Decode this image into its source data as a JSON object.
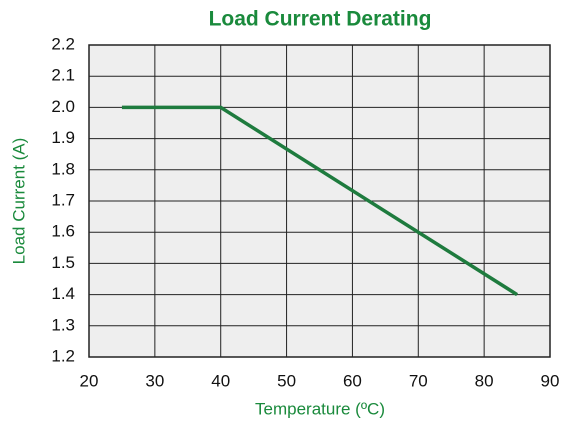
{
  "chart_data": {
    "type": "line",
    "title": "Load Current Derating",
    "x_label": "Temperature (ºC)",
    "y_label": "Load Current (A)",
    "x": [
      25,
      40,
      85
    ],
    "series": [
      {
        "name": "Load Current",
        "color": "#1e7b3e",
        "values": [
          2.0,
          2.0,
          1.4
        ]
      }
    ],
    "xlim": [
      20,
      90
    ],
    "xticks": [
      20,
      30,
      40,
      50,
      60,
      70,
      80,
      90
    ],
    "ylim": [
      1.2,
      2.2
    ],
    "yticks": [
      1.2,
      1.3,
      1.4,
      1.5,
      1.6,
      1.7,
      1.8,
      1.9,
      {
        "value": 2,
        "label": "2.0"
      },
      2.1,
      2.2
    ],
    "grid": true
  }
}
